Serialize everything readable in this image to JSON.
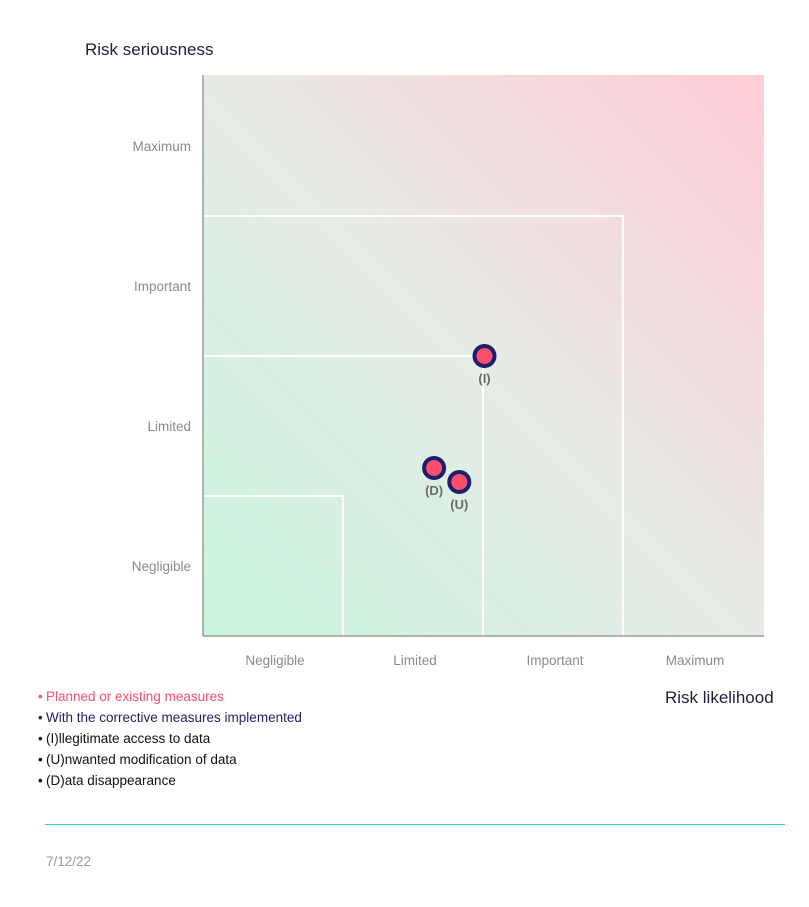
{
  "chart_data": {
    "type": "scatter",
    "ylabel": "Risk seriousness",
    "xlabel": "Risk likelihood",
    "levels": [
      "Negligible",
      "Limited",
      "Important",
      "Maximum"
    ],
    "points": [
      {
        "code": "(I)",
        "likelihood": 2.0,
        "seriousness": 2.0
      },
      {
        "code": "(D)",
        "likelihood": 1.64,
        "seriousness": 1.2
      },
      {
        "code": "(U)",
        "likelihood": 1.82,
        "seriousness": 1.1
      }
    ],
    "colors": {
      "point_fill": "#ff4d6d",
      "point_stroke": "#1b1f6e",
      "low_risk": "#c8f5dd",
      "high_risk": "#ffd0da"
    }
  },
  "legend": [
    {
      "text": "Planned or existing measures",
      "color": "#ff4d6d"
    },
    {
      "text": "With the corrective measures implemented",
      "color": "#1b1f6e"
    },
    {
      "text": "(I)llegitimate access to data",
      "color": "#111111"
    },
    {
      "text": "(U)nwanted modification of data",
      "color": "#111111"
    },
    {
      "text": "(D)ata disappearance",
      "color": "#111111"
    }
  ],
  "footer": {
    "date": "7/12/22"
  }
}
